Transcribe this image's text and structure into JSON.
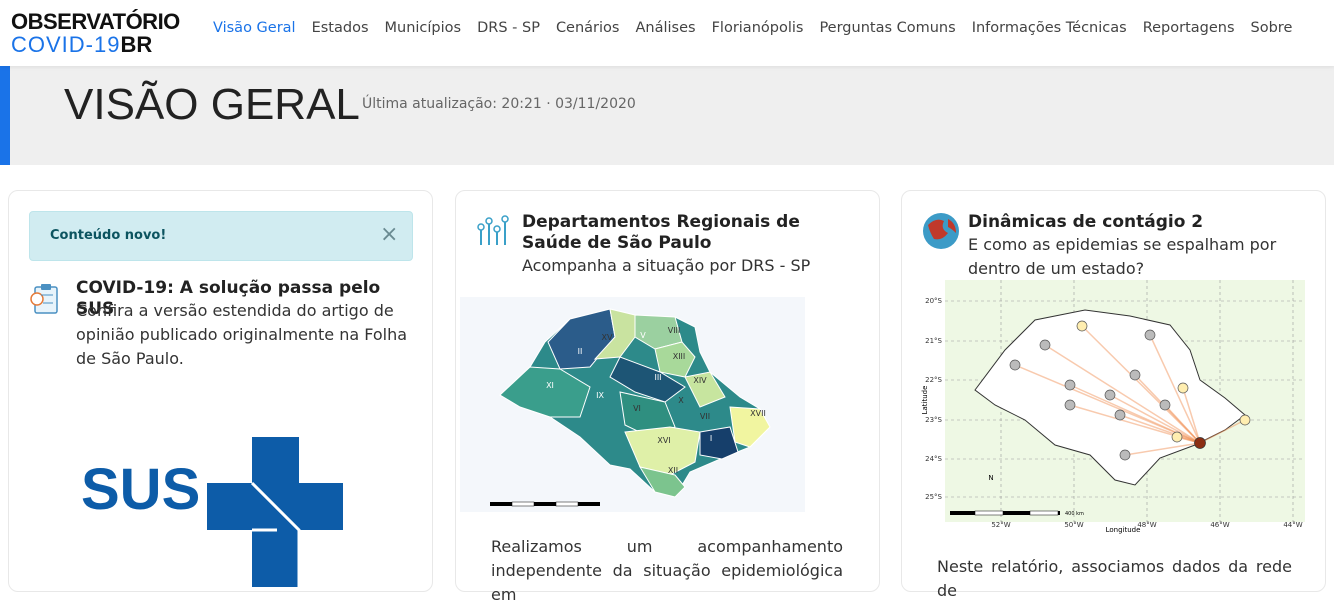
{
  "header": {
    "logo": {
      "line1": "OBSERVATÓRIO",
      "line2a": "COVID-19",
      "line2b": "BR"
    },
    "nav": [
      "Visão Geral",
      "Estados",
      "Municípios",
      "DRS - SP",
      "Cenários",
      "Análises",
      "Florianópolis",
      "Perguntas Comuns",
      "Informações Técnicas",
      "Reportagens",
      "Sobre"
    ]
  },
  "hero": {
    "title": "VISÃO GERAL",
    "updated": "Última atualização: 20:21 · 03/11/2020"
  },
  "cards": [
    {
      "alert": "Conteúdo novo!",
      "close": "×",
      "heading": "COVID-19: A solução passa pelo SUS",
      "text": "Confira a versão estendida do artigo de opinião publicado originalmente na Folha de São Paulo.",
      "logo_text": "SUS"
    },
    {
      "heading": "Departamentos Regionais de Saúde de São Paulo",
      "subtitle": "Acompanha a situação por DRS - SP",
      "map_labels": [
        "II",
        "V",
        "VIII",
        "XV",
        "XIII",
        "XI",
        "IX",
        "III",
        "VI",
        "X",
        "XIV",
        "VII",
        "XVII",
        "XVI",
        "I",
        "XII"
      ],
      "text": "Realizamos um acompanhamento independente da situação epidemiológica em"
    },
    {
      "heading": "Dinâmicas de contágio 2",
      "subtitle": "E como as epidemias se espalham por dentro de um estado?",
      "lat_ticks": [
        "20°S",
        "21°S",
        "22°S",
        "23°S",
        "24°S",
        "25°S"
      ],
      "lon_ticks": [
        "52°W",
        "50°W",
        "48°W",
        "46°W",
        "44°W"
      ],
      "y_label": "Latitude",
      "x_label": "Longitude",
      "scale": "400 km",
      "text": "Neste relatório, associamos dados da rede de"
    }
  ]
}
